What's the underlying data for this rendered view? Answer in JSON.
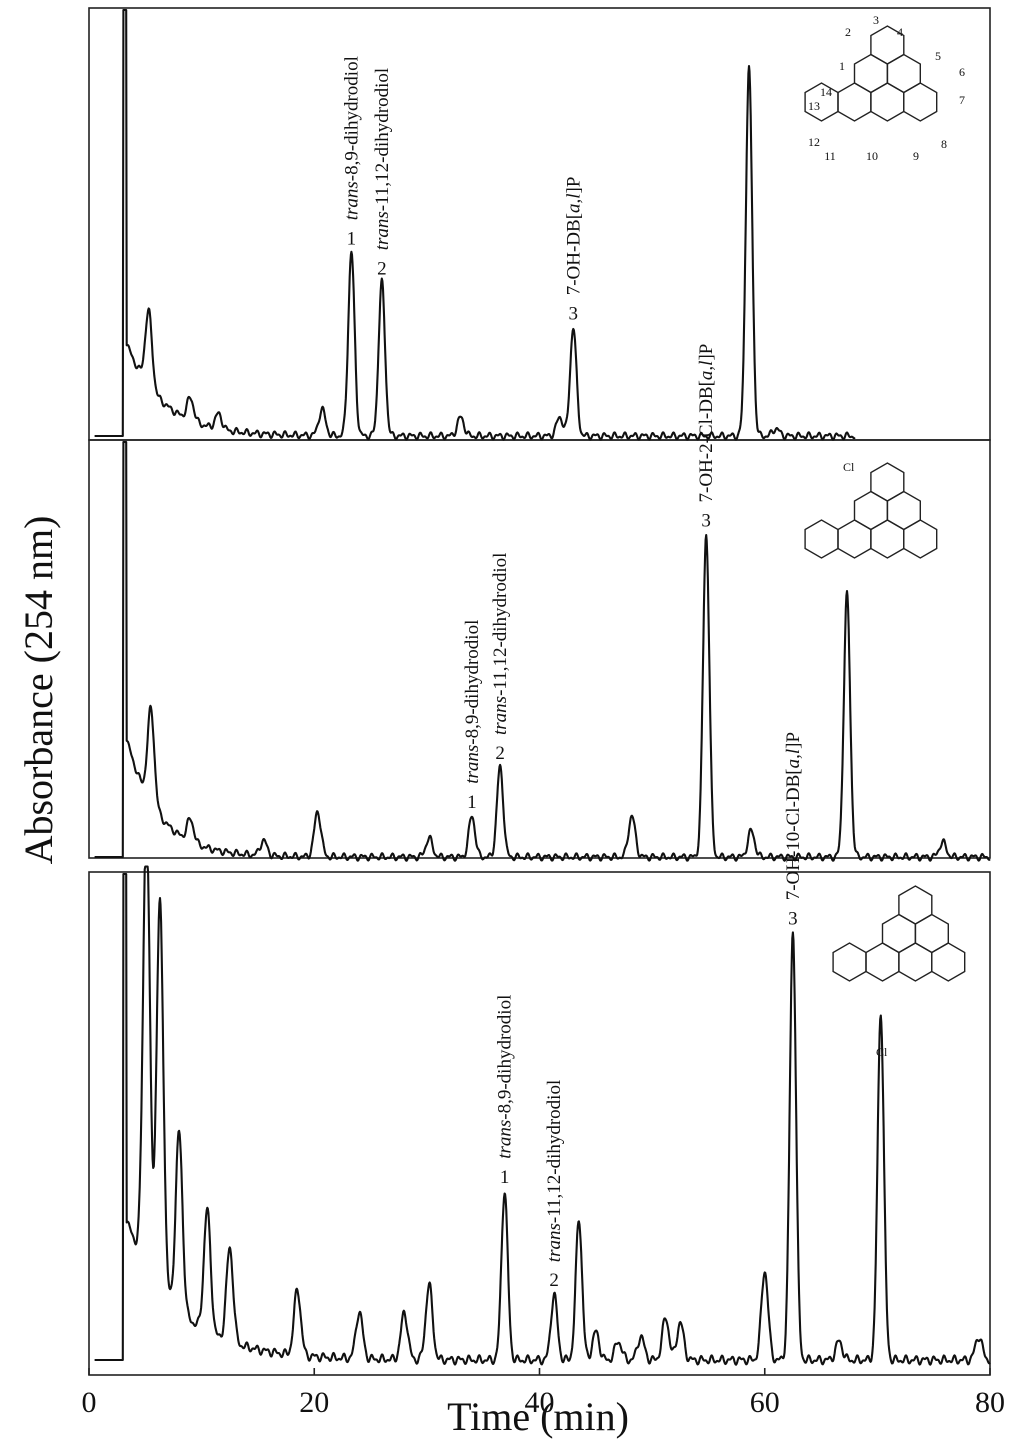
{
  "chart_data": {
    "type": "line",
    "xlabel": "Time (min)",
    "ylabel": "Absorbance (254 nm)",
    "xlim": [
      0,
      80
    ],
    "x_ticks": [
      "0",
      "20",
      "40",
      "60",
      "80"
    ],
    "grid": false,
    "panels": [
      {
        "compound": "DB[a,l]P",
        "structure_numbering": [
          "1",
          "2",
          "3",
          "4",
          "5",
          "6",
          "7",
          "8",
          "9",
          "10",
          "11",
          "12",
          "13",
          "14"
        ],
        "peaks": [
          {
            "time": 23.3,
            "height": 0.49,
            "number": "1",
            "label": "trans-8,9-dihydrodiol"
          },
          {
            "time": 26.0,
            "height": 0.41,
            "number": "2",
            "label": "trans-11,12-dihydrodiol"
          },
          {
            "time": 43.0,
            "height": 0.29,
            "number": "3",
            "label": "7-OH-DB[a,l]P"
          },
          {
            "time": 58.6,
            "height": 0.98,
            "number": "",
            "label": ""
          }
        ],
        "minor_peaks": [
          [
            5.3,
            0.2
          ],
          [
            9.0,
            0.06
          ],
          [
            11.5,
            0.04
          ],
          [
            20.7,
            0.07
          ],
          [
            33.0,
            0.05
          ],
          [
            41.8,
            0.05
          ],
          [
            61.0,
            0.02
          ]
        ]
      },
      {
        "compound": "2-Cl-DB[a,l]P",
        "structure_substituent": "Cl",
        "peaks": [
          {
            "time": 34.0,
            "height": 0.11,
            "number": "1",
            "label": "trans-8,9-dihydrodiol"
          },
          {
            "time": 36.5,
            "height": 0.24,
            "number": "2",
            "label": "trans-11,12-dihydrodiol"
          },
          {
            "time": 54.8,
            "height": 0.86,
            "number": "3",
            "label": "7-OH-2-Cl-DB[a,l]P"
          },
          {
            "time": 67.3,
            "height": 0.7,
            "number": "",
            "label": ""
          }
        ],
        "minor_peaks": [
          [
            5.5,
            0.25
          ],
          [
            9.0,
            0.06
          ],
          [
            15.5,
            0.04
          ],
          [
            20.3,
            0.12
          ],
          [
            30.2,
            0.05
          ],
          [
            48.2,
            0.11
          ],
          [
            58.8,
            0.07
          ],
          [
            75.8,
            0.04
          ]
        ]
      },
      {
        "compound": "10-Cl-DB[a,l]P",
        "structure_substituent": "Cl",
        "peaks": [
          {
            "time": 36.9,
            "height": 0.36,
            "number": "1",
            "label": "trans-8,9-dihydrodiol"
          },
          {
            "time": 41.3,
            "height": 0.14,
            "number": "2",
            "label": "trans-11,12-dihydrodiol"
          },
          {
            "time": 43.5,
            "height": 0.3,
            "number": "",
            "label": ""
          },
          {
            "time": 62.5,
            "height": 0.91,
            "number": "3",
            "label": "7-OH-10-Cl-DB[a,l]P"
          },
          {
            "time": 70.3,
            "height": 0.74,
            "number": "",
            "label": ""
          }
        ],
        "minor_peaks": [
          [
            5.1,
            0.95
          ],
          [
            6.3,
            0.82
          ],
          [
            8.0,
            0.38
          ],
          [
            10.5,
            0.26
          ],
          [
            12.5,
            0.2
          ],
          [
            18.5,
            0.14
          ],
          [
            24.0,
            0.1
          ],
          [
            28.0,
            0.1
          ],
          [
            30.2,
            0.16
          ],
          [
            45.0,
            0.06
          ],
          [
            47.0,
            0.04
          ],
          [
            49.0,
            0.05
          ],
          [
            51.2,
            0.09
          ],
          [
            52.5,
            0.08
          ],
          [
            60.0,
            0.19
          ],
          [
            66.6,
            0.04
          ],
          [
            79.0,
            0.05
          ]
        ]
      }
    ]
  }
}
